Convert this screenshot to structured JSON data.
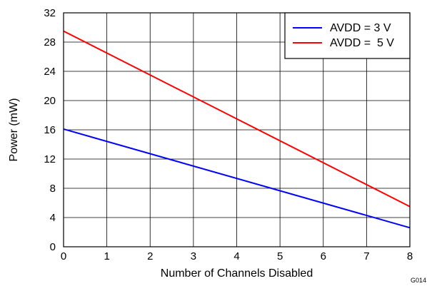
{
  "chart_data": {
    "type": "line",
    "xlabel": "Number of Channels Disabled",
    "ylabel": "Power (mW)",
    "xlim": [
      0,
      8
    ],
    "ylim": [
      0,
      32
    ],
    "xticks": [
      0,
      1,
      2,
      3,
      4,
      5,
      6,
      7,
      8
    ],
    "yticks": [
      0,
      4,
      8,
      12,
      16,
      20,
      24,
      28,
      32
    ],
    "grid": true,
    "legend_position": "top-right",
    "figure_code": "G014",
    "series": [
      {
        "name": "AVDD = 3 V",
        "color": "#0000ff",
        "x": [
          0,
          8
        ],
        "y": [
          16.1,
          2.6
        ]
      },
      {
        "name": "AVDD =  5 V",
        "color": "#ff0000",
        "x": [
          0,
          8
        ],
        "y": [
          29.5,
          5.5
        ]
      }
    ]
  }
}
